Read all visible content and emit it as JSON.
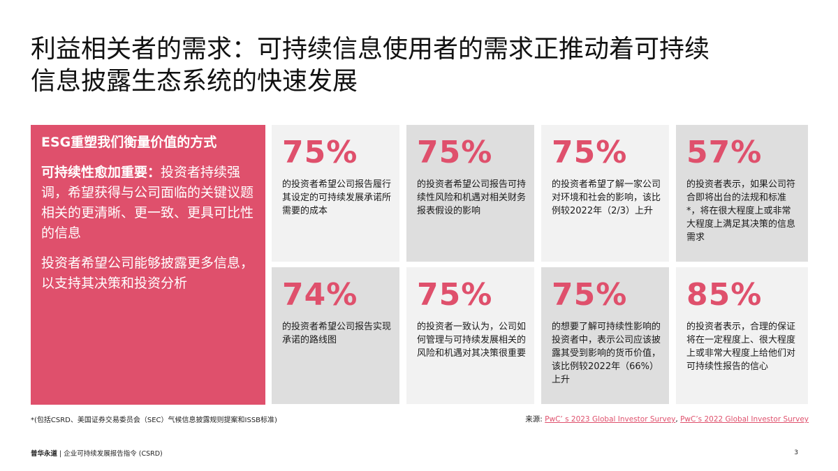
{
  "title": {
    "line1": "利益相关者的需求：可持续信息使用者的需求正推动着可持续",
    "line2": "信息披露生态系统的快速发展"
  },
  "panel": {
    "heading": "ESG重塑我们衡量价值的方式",
    "para1_bold": "可持续性愈加重要：",
    "para1_rest": "投资者持续强调，希望获得与公司面临的关键议题相关的更清晰、更一致、更具可比性的信息",
    "para2": "投资者希望公司能够披露更多信息，以支持其决策和投资分析"
  },
  "stats": [
    {
      "pct": "75%",
      "text": "的投资者希望公司报告履行其设定的可持续发展承诺所需要的成本"
    },
    {
      "pct": "75%",
      "text": "的投资者希望公司报告可持续性风险和机遇对相关财务报表假设的影响"
    },
    {
      "pct": "75%",
      "text": "的投资者希望了解一家公司对环境和社会的影响，该比例较2022年（2/3）上升"
    },
    {
      "pct": "57%",
      "text": "的投资者表示，如果公司符合即将出台的法规和标准*，将在很大程度上或非常大程度上满足其决策的信息需求"
    },
    {
      "pct": "74%",
      "text": "的投资者希望公司报告实现承诺的路线图"
    },
    {
      "pct": "75%",
      "text": "的投资者一致认为，公司如何管理与可持续发展相关的风险和机遇对其决策很重要"
    },
    {
      "pct": "75%",
      "text": "的想要了解可持续性影响的投资者中，表示公司应该披露其受到影响的货币价值，该比例较2022年（66%）上升"
    },
    {
      "pct": "85%",
      "text": "的投资者表示，合理的保证将在一定程度上、很大程度上或非常大程度上给他们对可持续性报告的信心"
    }
  ],
  "footnote": "*(包括CSRD、美国证券交易委员会（SEC）气候信息披露规则提案和ISSB标准)",
  "source": {
    "label": "来源: ",
    "link1": "PwC’ s 2023 Global Investor Survey",
    "sep": ", ",
    "link2": "PwC’s 2022 Global Investor Survey"
  },
  "footer": {
    "brand": "普华永道",
    "text": " | 企业可持续发展报告指令 (CSRD)"
  },
  "page_number": "3",
  "colors": {
    "accent": "#df506c",
    "card_light": "#f2f2f2",
    "card_dark": "#dedede"
  }
}
